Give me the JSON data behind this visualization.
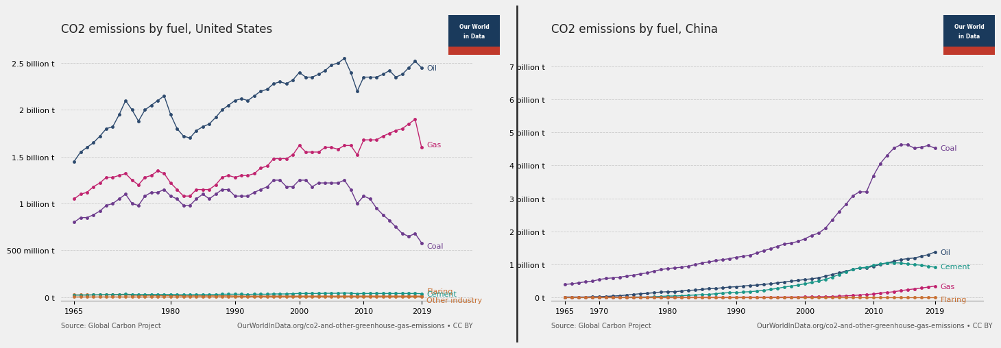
{
  "us_title": "CO2 emissions by fuel, United States",
  "china_title": "CO2 emissions by fuel, China",
  "source_text": "Source: Global Carbon Project",
  "url_text": "OurWorldInData.org/co2-and-other-greenhouse-gas-emissions • CC BY",
  "background_color": "#f0f0f0",
  "plot_bg": "#f0f0f0",
  "grid_color": "#cccccc",
  "years": [
    1965,
    1966,
    1967,
    1968,
    1969,
    1970,
    1971,
    1972,
    1973,
    1974,
    1975,
    1976,
    1977,
    1978,
    1979,
    1980,
    1981,
    1982,
    1983,
    1984,
    1985,
    1986,
    1987,
    1988,
    1989,
    1990,
    1991,
    1992,
    1993,
    1994,
    1995,
    1996,
    1997,
    1998,
    1999,
    2000,
    2001,
    2002,
    2003,
    2004,
    2005,
    2006,
    2007,
    2008,
    2009,
    2010,
    2011,
    2012,
    2013,
    2014,
    2015,
    2016,
    2017,
    2018,
    2019
  ],
  "us_oil": [
    1.45,
    1.55,
    1.6,
    1.65,
    1.72,
    1.8,
    1.82,
    1.95,
    2.1,
    2.0,
    1.88,
    2.0,
    2.05,
    2.1,
    2.15,
    1.95,
    1.8,
    1.72,
    1.7,
    1.78,
    1.82,
    1.85,
    1.92,
    2.0,
    2.05,
    2.1,
    2.12,
    2.1,
    2.15,
    2.2,
    2.22,
    2.28,
    2.3,
    2.28,
    2.32,
    2.4,
    2.35,
    2.35,
    2.38,
    2.42,
    2.48,
    2.5,
    2.55,
    2.4,
    2.2,
    2.35,
    2.35,
    2.35,
    2.38,
    2.42,
    2.35,
    2.38,
    2.45,
    2.52,
    2.45
  ],
  "us_gas": [
    1.05,
    1.1,
    1.12,
    1.18,
    1.22,
    1.28,
    1.28,
    1.3,
    1.32,
    1.25,
    1.2,
    1.28,
    1.3,
    1.35,
    1.32,
    1.22,
    1.15,
    1.08,
    1.08,
    1.15,
    1.15,
    1.15,
    1.2,
    1.28,
    1.3,
    1.28,
    1.3,
    1.3,
    1.32,
    1.38,
    1.4,
    1.48,
    1.48,
    1.48,
    1.52,
    1.62,
    1.55,
    1.55,
    1.55,
    1.6,
    1.6,
    1.58,
    1.62,
    1.62,
    1.52,
    1.68,
    1.68,
    1.68,
    1.72,
    1.75,
    1.78,
    1.8,
    1.85,
    1.9,
    1.6
  ],
  "us_coal": [
    0.8,
    0.85,
    0.85,
    0.88,
    0.92,
    0.98,
    1.0,
    1.05,
    1.1,
    1.0,
    0.98,
    1.08,
    1.12,
    1.12,
    1.15,
    1.08,
    1.05,
    0.98,
    0.98,
    1.05,
    1.1,
    1.05,
    1.1,
    1.15,
    1.15,
    1.08,
    1.08,
    1.08,
    1.12,
    1.15,
    1.18,
    1.25,
    1.25,
    1.18,
    1.18,
    1.25,
    1.25,
    1.18,
    1.22,
    1.22,
    1.22,
    1.22,
    1.25,
    1.15,
    1.0,
    1.08,
    1.05,
    0.95,
    0.88,
    0.82,
    0.75,
    0.68,
    0.65,
    0.68,
    0.58
  ],
  "us_flaring": [
    0.025,
    0.025,
    0.025,
    0.025,
    0.025,
    0.025,
    0.025,
    0.025,
    0.025,
    0.022,
    0.02,
    0.02,
    0.02,
    0.018,
    0.018,
    0.018,
    0.018,
    0.015,
    0.015,
    0.015,
    0.015,
    0.015,
    0.015,
    0.015,
    0.015,
    0.012,
    0.012,
    0.012,
    0.012,
    0.012,
    0.012,
    0.012,
    0.012,
    0.012,
    0.012,
    0.012,
    0.012,
    0.012,
    0.012,
    0.012,
    0.012,
    0.012,
    0.012,
    0.012,
    0.012,
    0.012,
    0.012,
    0.012,
    0.012,
    0.012,
    0.012,
    0.012,
    0.012,
    0.012,
    0.012
  ],
  "us_cement": [
    0.022,
    0.023,
    0.023,
    0.025,
    0.026,
    0.028,
    0.028,
    0.03,
    0.032,
    0.03,
    0.028,
    0.03,
    0.03,
    0.03,
    0.03,
    0.03,
    0.028,
    0.026,
    0.026,
    0.028,
    0.028,
    0.028,
    0.03,
    0.032,
    0.032,
    0.032,
    0.032,
    0.03,
    0.032,
    0.032,
    0.032,
    0.035,
    0.035,
    0.035,
    0.038,
    0.04,
    0.04,
    0.04,
    0.04,
    0.042,
    0.042,
    0.042,
    0.045,
    0.042,
    0.038,
    0.04,
    0.04,
    0.04,
    0.04,
    0.04,
    0.04,
    0.04,
    0.04,
    0.04,
    0.038
  ],
  "us_other": [
    0.008,
    0.008,
    0.008,
    0.008,
    0.008,
    0.008,
    0.008,
    0.008,
    0.008,
    0.008,
    0.008,
    0.008,
    0.008,
    0.008,
    0.008,
    0.008,
    0.008,
    0.008,
    0.008,
    0.008,
    0.008,
    0.008,
    0.008,
    0.008,
    0.008,
    0.008,
    0.008,
    0.008,
    0.008,
    0.008,
    0.008,
    0.008,
    0.008,
    0.008,
    0.008,
    0.008,
    0.008,
    0.008,
    0.008,
    0.008,
    0.008,
    0.008,
    0.008,
    0.008,
    0.008,
    0.008,
    0.008,
    0.008,
    0.008,
    0.008,
    0.008,
    0.008,
    0.008,
    0.008,
    0.008
  ],
  "china_coal": [
    0.4,
    0.42,
    0.45,
    0.48,
    0.5,
    0.55,
    0.58,
    0.6,
    0.62,
    0.65,
    0.68,
    0.72,
    0.75,
    0.8,
    0.85,
    0.88,
    0.9,
    0.92,
    0.95,
    1.0,
    1.05,
    1.08,
    1.12,
    1.15,
    1.18,
    1.22,
    1.25,
    1.28,
    1.35,
    1.42,
    1.48,
    1.55,
    1.62,
    1.65,
    1.7,
    1.78,
    1.88,
    1.95,
    2.1,
    2.35,
    2.6,
    2.82,
    3.08,
    3.2,
    3.2,
    3.68,
    4.05,
    4.3,
    4.52,
    4.62,
    4.62,
    4.52,
    4.55,
    4.6,
    4.52
  ],
  "china_oil": [
    0.02,
    0.02,
    0.02,
    0.02,
    0.03,
    0.03,
    0.04,
    0.05,
    0.06,
    0.08,
    0.1,
    0.12,
    0.13,
    0.15,
    0.17,
    0.18,
    0.18,
    0.2,
    0.22,
    0.23,
    0.25,
    0.27,
    0.28,
    0.3,
    0.32,
    0.33,
    0.35,
    0.37,
    0.38,
    0.4,
    0.42,
    0.45,
    0.47,
    0.5,
    0.52,
    0.55,
    0.57,
    0.6,
    0.65,
    0.7,
    0.75,
    0.8,
    0.85,
    0.9,
    0.9,
    0.95,
    1.0,
    1.05,
    1.1,
    1.15,
    1.18,
    1.2,
    1.25,
    1.3,
    1.38
  ],
  "china_cement": [
    0.01,
    0.01,
    0.01,
    0.01,
    0.01,
    0.01,
    0.01,
    0.01,
    0.01,
    0.01,
    0.02,
    0.02,
    0.02,
    0.03,
    0.04,
    0.05,
    0.05,
    0.06,
    0.07,
    0.08,
    0.09,
    0.1,
    0.12,
    0.14,
    0.15,
    0.15,
    0.17,
    0.18,
    0.2,
    0.22,
    0.25,
    0.28,
    0.32,
    0.35,
    0.38,
    0.42,
    0.46,
    0.5,
    0.55,
    0.62,
    0.7,
    0.78,
    0.85,
    0.9,
    0.92,
    0.98,
    1.02,
    1.05,
    1.05,
    1.05,
    1.02,
    1.0,
    0.98,
    0.95,
    0.92
  ],
  "china_gas": [
    0.005,
    0.005,
    0.005,
    0.005,
    0.005,
    0.005,
    0.005,
    0.005,
    0.005,
    0.005,
    0.005,
    0.005,
    0.006,
    0.006,
    0.006,
    0.006,
    0.006,
    0.007,
    0.007,
    0.007,
    0.008,
    0.008,
    0.008,
    0.009,
    0.009,
    0.01,
    0.01,
    0.012,
    0.012,
    0.013,
    0.015,
    0.016,
    0.017,
    0.018,
    0.02,
    0.022,
    0.025,
    0.028,
    0.032,
    0.038,
    0.045,
    0.055,
    0.065,
    0.08,
    0.095,
    0.11,
    0.135,
    0.155,
    0.18,
    0.21,
    0.24,
    0.265,
    0.29,
    0.32,
    0.35
  ],
  "china_flaring": [
    0.002,
    0.002,
    0.002,
    0.002,
    0.002,
    0.002,
    0.002,
    0.002,
    0.002,
    0.002,
    0.002,
    0.002,
    0.002,
    0.002,
    0.002,
    0.002,
    0.002,
    0.002,
    0.002,
    0.002,
    0.002,
    0.002,
    0.002,
    0.002,
    0.002,
    0.002,
    0.002,
    0.002,
    0.002,
    0.002,
    0.002,
    0.002,
    0.002,
    0.002,
    0.002,
    0.002,
    0.002,
    0.002,
    0.002,
    0.002,
    0.002,
    0.002,
    0.002,
    0.002,
    0.002,
    0.002,
    0.002,
    0.002,
    0.002,
    0.002,
    0.002,
    0.002,
    0.002,
    0.002,
    0.002
  ],
  "color_oil": "#2d4a6e",
  "color_gas": "#c0226e",
  "color_coal": "#6c3a8c",
  "color_flaring": "#c87032",
  "color_cement": "#1a9688",
  "color_other": "#c87032",
  "us_yticks": [
    0,
    500000000,
    1000000000,
    1500000000,
    2000000000,
    2500000000
  ],
  "us_ytick_labels": [
    "0 t",
    "500 million t",
    "1 billion t",
    "1.5 billion t",
    "2 billion t",
    "2.5 billion t"
  ],
  "china_yticks": [
    0,
    1000000000,
    2000000000,
    3000000000,
    4000000000,
    5000000000,
    6000000000,
    7000000000
  ],
  "china_ytick_labels": [
    "0 t",
    "1 billion t",
    "2 billion t",
    "3 billion t",
    "4 billion t",
    "5 billion t",
    "6 billion t",
    "7 billion t"
  ],
  "owid_box_color": "#1a3a5c",
  "owid_red": "#c0392b",
  "divider_color": "#333333"
}
